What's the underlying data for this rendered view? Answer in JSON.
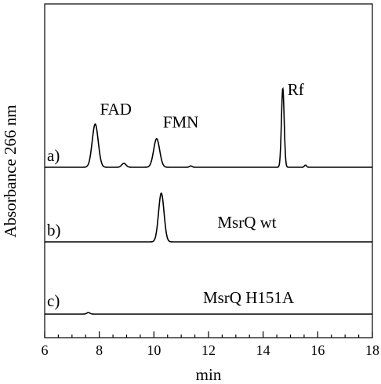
{
  "chart_data": {
    "type": "line",
    "xlabel": "min",
    "ylabel": "Absorbance 266 nm",
    "xlim": [
      6,
      18
    ],
    "xticks": [
      6,
      8,
      10,
      12,
      14,
      16,
      18
    ],
    "grid": false,
    "series": [
      {
        "trace_label": "a)",
        "annotation": "",
        "baseline": 0.0,
        "peaks": [
          {
            "label": "FAD",
            "x": 7.85,
            "height": 1.0,
            "width": 0.11
          },
          {
            "label": "",
            "x": 8.9,
            "height": 0.09,
            "width": 0.08
          },
          {
            "label": "FMN",
            "x": 10.1,
            "height": 0.66,
            "width": 0.11
          },
          {
            "label": "",
            "x": 11.35,
            "height": 0.03,
            "width": 0.05
          },
          {
            "label": "Rf",
            "x": 14.72,
            "height": 1.82,
            "width": 0.05
          },
          {
            "label": "",
            "x": 15.55,
            "height": 0.05,
            "width": 0.04
          }
        ]
      },
      {
        "trace_label": "b)",
        "annotation": "MsrQ wt",
        "baseline": 0.0,
        "peaks": [
          {
            "label": "",
            "x": 10.27,
            "height": 0.62,
            "width": 0.1
          }
        ]
      },
      {
        "trace_label": "c)",
        "annotation": "MsrQ H151A",
        "baseline": 0.0,
        "peaks": [
          {
            "label": "",
            "x": 7.6,
            "height": 0.02,
            "width": 0.06
          }
        ]
      }
    ]
  }
}
